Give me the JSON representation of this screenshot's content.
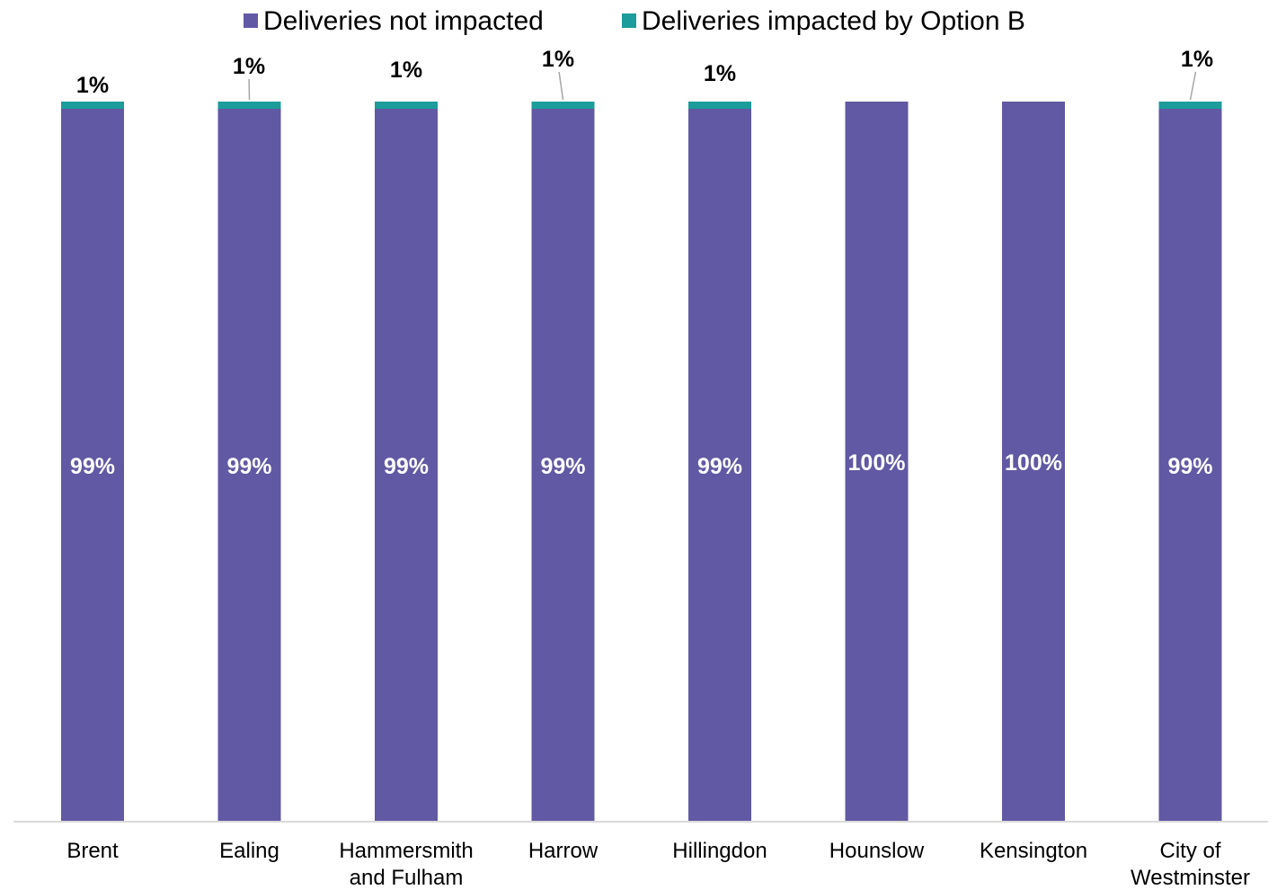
{
  "chart_data": {
    "type": "bar",
    "stacked": true,
    "categories": [
      "Brent",
      "Ealing",
      "Hammersmith and Fulham",
      "Harrow",
      "Hillingdon",
      "Hounslow",
      "Kensington",
      "City of Westminster"
    ],
    "category_lines": [
      [
        "Brent"
      ],
      [
        "Ealing"
      ],
      [
        "Hammersmith",
        "and Fulham"
      ],
      [
        "Harrow"
      ],
      [
        "Hillingdon"
      ],
      [
        "Hounslow"
      ],
      [
        "Kensington"
      ],
      [
        "City of",
        "Westminster"
      ]
    ],
    "series": [
      {
        "name": "Deliveries not impacted",
        "color": "#6159a3",
        "values": [
          99,
          99,
          99,
          99,
          99,
          100,
          100,
          99
        ],
        "labels": [
          "99%",
          "99%",
          "99%",
          "99%",
          "99%",
          "100%",
          "100%",
          "99%"
        ]
      },
      {
        "name": "Deliveries impacted by Option B",
        "color": "#1c9c9a",
        "values": [
          1,
          1,
          1,
          1,
          1,
          0,
          0,
          1
        ],
        "labels": [
          "1%",
          "1%",
          "1%",
          "1%",
          "1%",
          "",
          "",
          "1%"
        ]
      }
    ],
    "ylim": [
      0,
      100
    ],
    "grid": false,
    "legend": "top"
  }
}
